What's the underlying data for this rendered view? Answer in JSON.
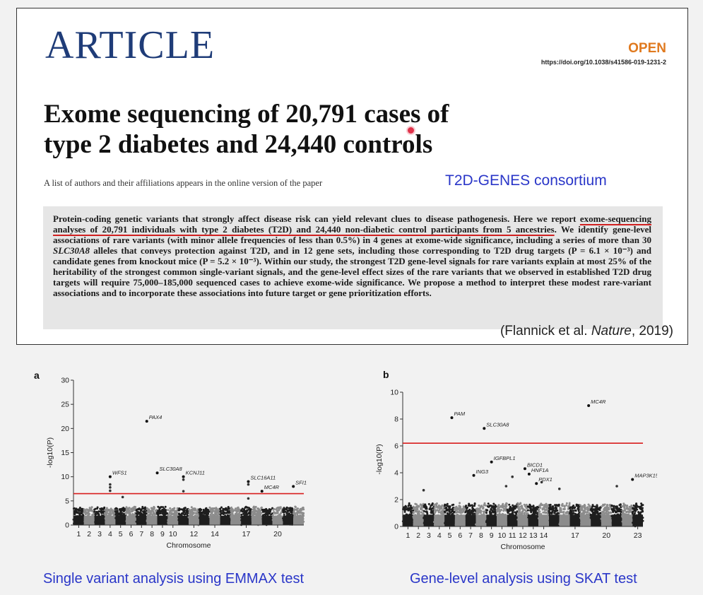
{
  "article": {
    "label": "ARTICLE",
    "open": "OPEN",
    "doi": "https://doi.org/10.1038/s41586-019-1231-2",
    "title_lines": [
      "Exome sequencing of 20,791 cases of",
      "type 2 diabetes and 24,440 controls"
    ],
    "authors_note": "A list of authors and their affiliations appears in the online version of the paper",
    "consortium": "T2D-GENES consortium",
    "citation_prefix": "(Flannick et al. ",
    "citation_journal": "Nature",
    "citation_suffix": ", 2019)"
  },
  "abstract": {
    "p1": "Protein-coding genetic variants that strongly affect disease risk can yield relevant clues to disease pathogenesis. Here we report ",
    "underlined": "exome-sequencing analyses of 20,791 individuals with type 2 diabetes (T2D) and 24,440 non-diabetic control participants from 5 ancestries",
    "p2": ". We identify gene-level associations of rare variants (with minor allele frequencies of less than 0.5%) in 4 genes at exome-wide significance, including a series of more than 30 ",
    "gene_italic": "SLC30A8",
    "p3": " alleles that conveys protection against T2D, and in 12 gene sets, including those corresponding to T2D drug targets (P = 6.1 × 10⁻³) and candidate genes from knockout mice (P = 5.2 × 10⁻³). Within our study, the strongest T2D gene-level signals for rare variants explain at most 25% of the heritability of the strongest common single-variant signals, and the gene-level effect sizes of the rare variants that we observed in established T2D drug targets will require 75,000–185,000 sequenced cases to achieve exome-wide significance. We propose a method to interpret these modest rare-variant associations and to incorporate these associations into future target or gene prioritization efforts."
  },
  "colors": {
    "accent_blue": "#2a36c8",
    "article_blue": "#1f3c78",
    "open_orange": "#e07a1f",
    "threshold_red": "#d81e1e"
  },
  "panels": {
    "a": {
      "letter": "a",
      "caption": "Single variant analysis using EMMAX test"
    },
    "b": {
      "letter": "b",
      "caption": "Gene-level analysis using SKAT test"
    }
  },
  "chart_data": [
    {
      "type": "scatter",
      "subtype": "manhattan",
      "panel": "a",
      "title": "",
      "xlabel": "Chromosome",
      "ylabel": "-log10(P)",
      "ylim": [
        0,
        30
      ],
      "yticks": [
        0,
        5,
        10,
        15,
        20,
        25,
        30
      ],
      "xtick_labels": [
        "1",
        "2",
        "3",
        "4",
        "5",
        "6",
        "7",
        "8",
        "9",
        "10",
        "12",
        "14",
        "17",
        "20"
      ],
      "xtick_chromosomes": [
        1,
        2,
        3,
        4,
        5,
        6,
        7,
        8,
        9,
        10,
        12,
        14,
        17,
        20
      ],
      "n_chromosomes": 22,
      "threshold": 6.5,
      "baseline_height": 3.5,
      "labeled_points": [
        {
          "gene": "PAX4",
          "chrom": 7.5,
          "y": 21.5
        },
        {
          "gene": "WFS1",
          "chrom": 4.0,
          "y": 10.0
        },
        {
          "gene": "SLC30A8",
          "chrom": 8.5,
          "y": 10.8
        },
        {
          "gene": "KCNJ11",
          "chrom": 11.0,
          "y": 10.0
        },
        {
          "gene": "SLC16A11",
          "chrom": 17.2,
          "y": 9.0
        },
        {
          "gene": "SFI1",
          "chrom": 21.5,
          "y": 8.0
        },
        {
          "gene": "MC4R",
          "chrom": 18.5,
          "y": 7.0
        }
      ],
      "other_points": [
        {
          "chrom": 4.0,
          "y": 8.4
        },
        {
          "chrom": 4.0,
          "y": 7.8
        },
        {
          "chrom": 4.0,
          "y": 7.1
        },
        {
          "chrom": 11.0,
          "y": 9.4
        },
        {
          "chrom": 11.0,
          "y": 7.0
        },
        {
          "chrom": 17.2,
          "y": 8.4
        },
        {
          "chrom": 5.2,
          "y": 5.8
        },
        {
          "chrom": 17.2,
          "y": 5.5
        }
      ]
    },
    {
      "type": "scatter",
      "subtype": "manhattan",
      "panel": "b",
      "title": "",
      "xlabel": "Chromosome",
      "ylabel": "-log10(P)",
      "ylim": [
        0,
        10
      ],
      "yticks": [
        0,
        2,
        4,
        6,
        8,
        10
      ],
      "xtick_labels": [
        "1",
        "2",
        "3",
        "4",
        "5",
        "6",
        "7",
        "8",
        "9",
        "10",
        "11",
        "12",
        "13",
        "14",
        "17",
        "20",
        "23"
      ],
      "xtick_chromosomes": [
        1,
        2,
        3,
        4,
        5,
        6,
        7,
        8,
        9,
        10,
        11,
        12,
        13,
        14,
        17,
        20,
        23
      ],
      "n_chromosomes": 23,
      "threshold": 6.2,
      "baseline_height": 1.6,
      "labeled_points": [
        {
          "gene": "PAM",
          "chrom": 5.2,
          "y": 8.1
        },
        {
          "gene": "SLC30A8",
          "chrom": 8.3,
          "y": 7.3
        },
        {
          "gene": "MC4R",
          "chrom": 18.3,
          "y": 9.0
        },
        {
          "gene": "IGFBPL1",
          "chrom": 9.0,
          "y": 4.8
        },
        {
          "gene": "ING3",
          "chrom": 7.3,
          "y": 3.8
        },
        {
          "gene": "BICD1",
          "chrom": 12.2,
          "y": 4.3
        },
        {
          "gene": "HNF1A",
          "chrom": 12.6,
          "y": 3.9
        },
        {
          "gene": "PDX1",
          "chrom": 13.3,
          "y": 3.2
        },
        {
          "gene": "MAP3K15",
          "chrom": 22.5,
          "y": 3.5
        }
      ],
      "other_points": [
        {
          "chrom": 11.0,
          "y": 3.7
        },
        {
          "chrom": 10.4,
          "y": 3.0
        },
        {
          "chrom": 13.8,
          "y": 3.3
        },
        {
          "chrom": 15.5,
          "y": 2.8
        },
        {
          "chrom": 21.0,
          "y": 3.0
        },
        {
          "chrom": 2.5,
          "y": 2.7
        }
      ]
    }
  ]
}
